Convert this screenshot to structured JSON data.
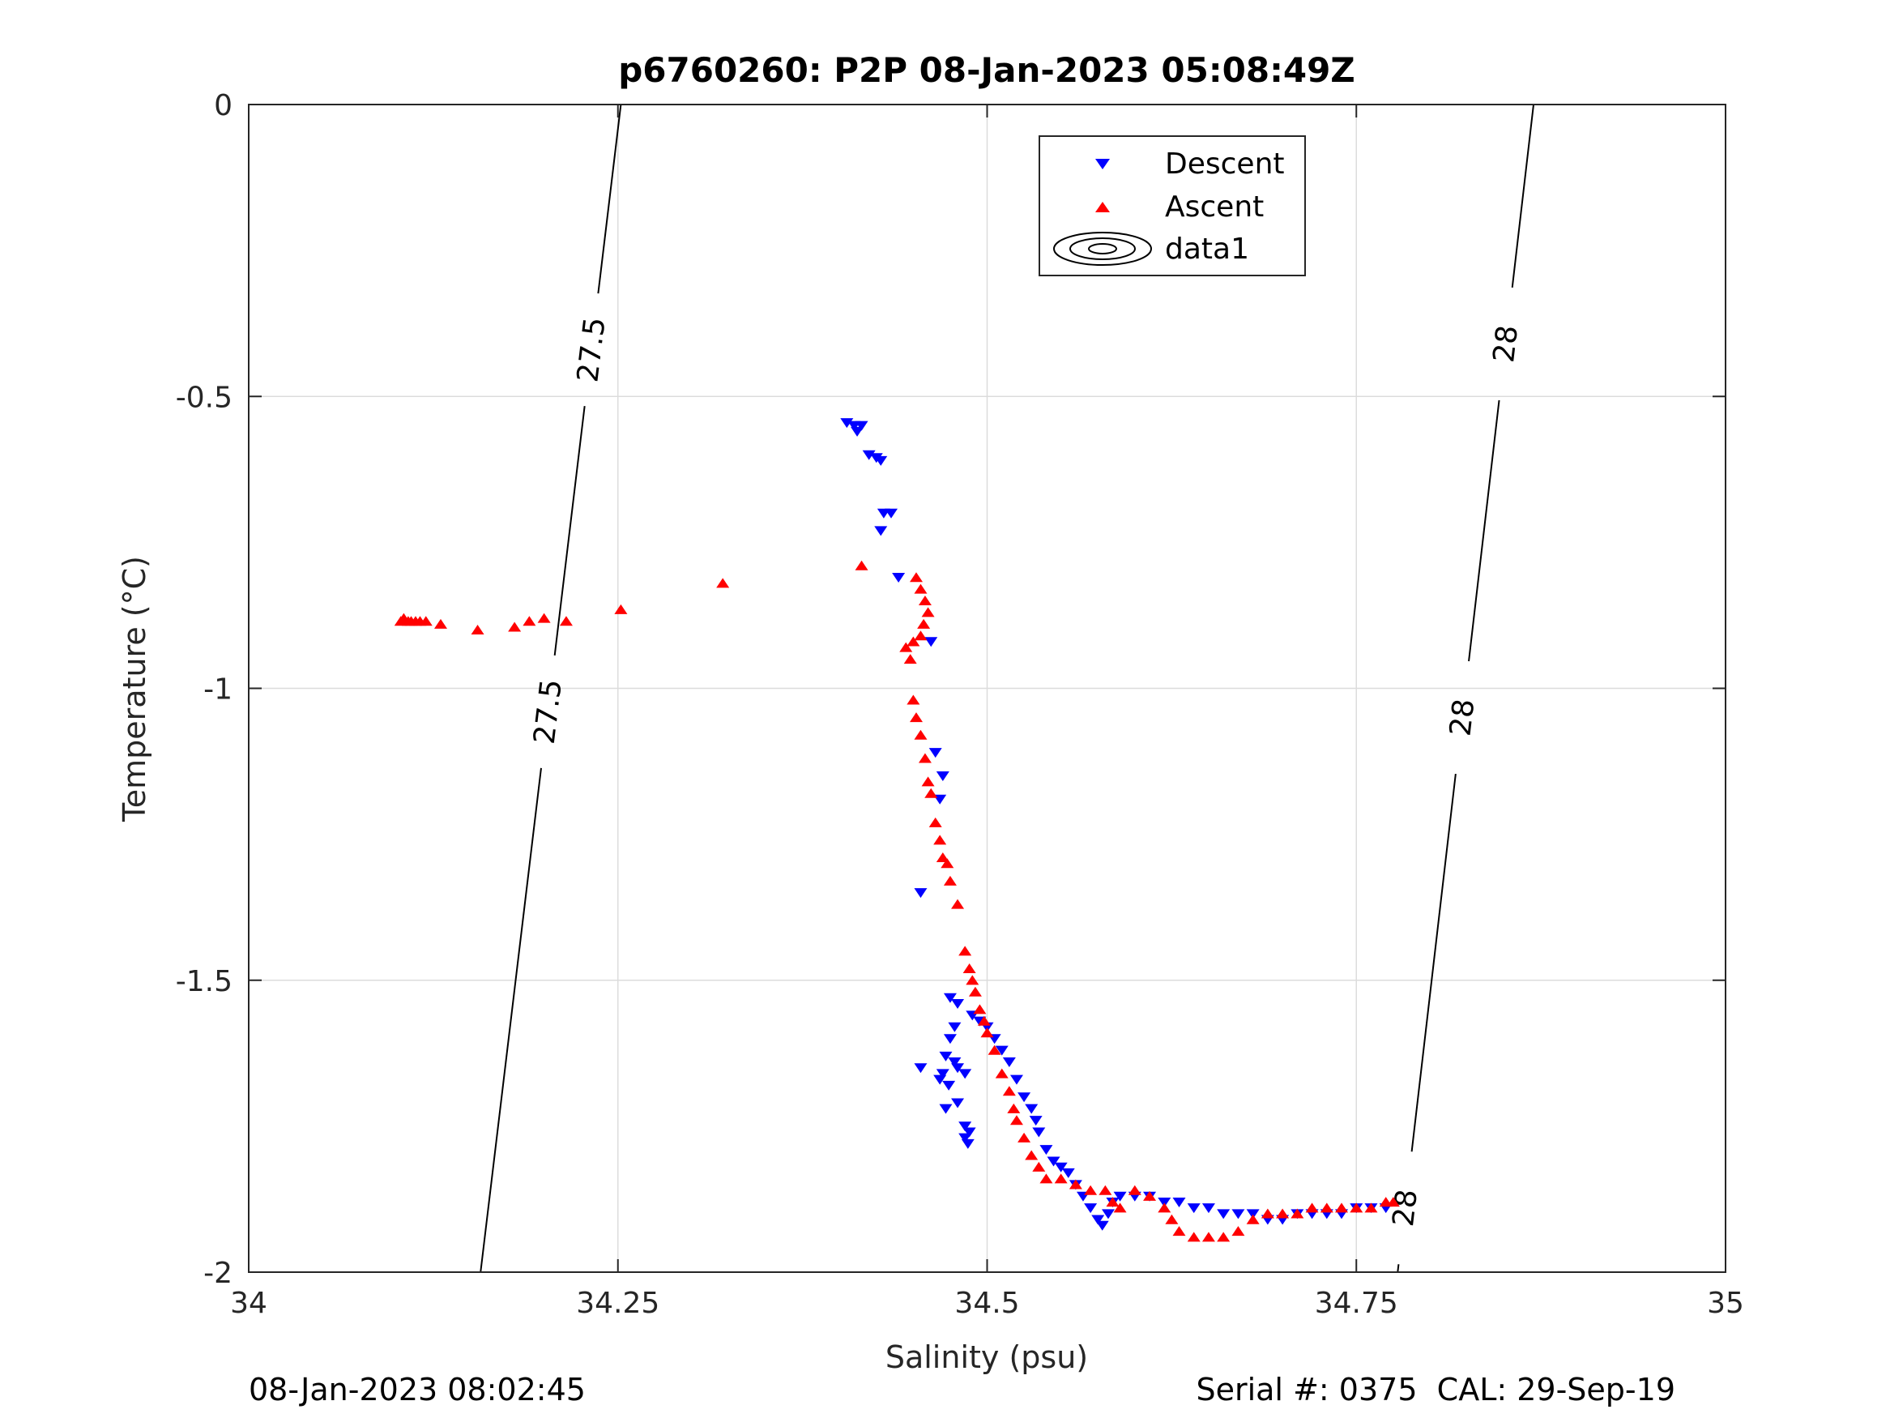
{
  "chart_data": {
    "type": "scatter",
    "title": "p6760260: P2P 08-Jan-2023 05:08:49Z",
    "xlabel": "Salinity (psu)",
    "ylabel": "Temperature (°C)",
    "xlim": [
      34,
      35
    ],
    "ylim": [
      -2,
      0
    ],
    "xticks": [
      34,
      34.25,
      34.5,
      34.75,
      35
    ],
    "xtick_labels": [
      "34",
      "34.25",
      "34.5",
      "34.75",
      "35"
    ],
    "yticks": [
      0,
      -0.5,
      -1,
      -1.5,
      -2
    ],
    "ytick_labels": [
      "0",
      "-0.5",
      "-1",
      "-1.5",
      "-2"
    ],
    "grid": true,
    "legend_position": "top-right",
    "series": [
      {
        "name": "Descent",
        "marker": "triangle-down",
        "color": "#0000ff",
        "points": [
          [
            34.405,
            -0.545
          ],
          [
            34.41,
            -0.55
          ],
          [
            34.412,
            -0.56
          ],
          [
            34.415,
            -0.55
          ],
          [
            34.42,
            -0.6
          ],
          [
            34.425,
            -0.605
          ],
          [
            34.428,
            -0.61
          ],
          [
            34.43,
            -0.7
          ],
          [
            34.435,
            -0.7
          ],
          [
            34.428,
            -0.73
          ],
          [
            34.44,
            -0.81
          ],
          [
            34.462,
            -0.92
          ],
          [
            34.465,
            -1.11
          ],
          [
            34.47,
            -1.15
          ],
          [
            34.468,
            -1.19
          ],
          [
            34.455,
            -1.35
          ],
          [
            34.475,
            -1.53
          ],
          [
            34.48,
            -1.54
          ],
          [
            34.478,
            -1.58
          ],
          [
            34.475,
            -1.6
          ],
          [
            34.472,
            -1.63
          ],
          [
            34.478,
            -1.64
          ],
          [
            34.48,
            -1.65
          ],
          [
            34.455,
            -1.65
          ],
          [
            34.47,
            -1.66
          ],
          [
            34.485,
            -1.66
          ],
          [
            34.474,
            -1.68
          ],
          [
            34.468,
            -1.67
          ],
          [
            34.472,
            -1.72
          ],
          [
            34.48,
            -1.71
          ],
          [
            34.485,
            -1.75
          ],
          [
            34.488,
            -1.76
          ],
          [
            34.485,
            -1.77
          ],
          [
            34.487,
            -1.78
          ],
          [
            34.49,
            -1.56
          ],
          [
            34.495,
            -1.57
          ],
          [
            34.5,
            -1.58
          ],
          [
            34.505,
            -1.6
          ],
          [
            34.51,
            -1.62
          ],
          [
            34.515,
            -1.64
          ],
          [
            34.52,
            -1.67
          ],
          [
            34.525,
            -1.7
          ],
          [
            34.53,
            -1.72
          ],
          [
            34.533,
            -1.74
          ],
          [
            34.535,
            -1.76
          ],
          [
            34.54,
            -1.79
          ],
          [
            34.545,
            -1.81
          ],
          [
            34.55,
            -1.82
          ],
          [
            34.555,
            -1.83
          ],
          [
            34.56,
            -1.85
          ],
          [
            34.565,
            -1.87
          ],
          [
            34.57,
            -1.89
          ],
          [
            34.575,
            -1.91
          ],
          [
            34.578,
            -1.92
          ],
          [
            34.582,
            -1.9
          ],
          [
            34.585,
            -1.88
          ],
          [
            34.59,
            -1.87
          ],
          [
            34.6,
            -1.87
          ],
          [
            34.61,
            -1.87
          ],
          [
            34.62,
            -1.88
          ],
          [
            34.63,
            -1.88
          ],
          [
            34.64,
            -1.89
          ],
          [
            34.65,
            -1.89
          ],
          [
            34.66,
            -1.9
          ],
          [
            34.67,
            -1.9
          ],
          [
            34.68,
            -1.9
          ],
          [
            34.69,
            -1.91
          ],
          [
            34.7,
            -1.91
          ],
          [
            34.71,
            -1.9
          ],
          [
            34.72,
            -1.9
          ],
          [
            34.73,
            -1.9
          ],
          [
            34.74,
            -1.9
          ],
          [
            34.75,
            -1.89
          ],
          [
            34.76,
            -1.89
          ],
          [
            34.77,
            -1.89
          ]
        ]
      },
      {
        "name": "Ascent",
        "marker": "triangle-up",
        "color": "#ff0000",
        "points": [
          [
            34.103,
            -0.885
          ],
          [
            34.105,
            -0.88
          ],
          [
            34.108,
            -0.885
          ],
          [
            34.11,
            -0.885
          ],
          [
            34.113,
            -0.885
          ],
          [
            34.116,
            -0.885
          ],
          [
            34.12,
            -0.885
          ],
          [
            34.13,
            -0.89
          ],
          [
            34.155,
            -0.9
          ],
          [
            34.18,
            -0.895
          ],
          [
            34.19,
            -0.885
          ],
          [
            34.2,
            -0.88
          ],
          [
            34.215,
            -0.885
          ],
          [
            34.252,
            -0.865
          ],
          [
            34.321,
            -0.82
          ],
          [
            34.415,
            -0.79
          ],
          [
            34.452,
            -0.81
          ],
          [
            34.455,
            -0.83
          ],
          [
            34.458,
            -0.85
          ],
          [
            34.46,
            -0.87
          ],
          [
            34.457,
            -0.89
          ],
          [
            34.455,
            -0.91
          ],
          [
            34.45,
            -0.92
          ],
          [
            34.445,
            -0.93
          ],
          [
            34.448,
            -0.95
          ],
          [
            34.45,
            -1.02
          ],
          [
            34.452,
            -1.05
          ],
          [
            34.455,
            -1.08
          ],
          [
            34.458,
            -1.12
          ],
          [
            34.46,
            -1.16
          ],
          [
            34.462,
            -1.18
          ],
          [
            34.465,
            -1.23
          ],
          [
            34.468,
            -1.26
          ],
          [
            34.47,
            -1.29
          ],
          [
            34.473,
            -1.3
          ],
          [
            34.475,
            -1.33
          ],
          [
            34.48,
            -1.37
          ],
          [
            34.485,
            -1.45
          ],
          [
            34.488,
            -1.48
          ],
          [
            34.49,
            -1.5
          ],
          [
            34.492,
            -1.52
          ],
          [
            34.495,
            -1.55
          ],
          [
            34.498,
            -1.57
          ],
          [
            34.5,
            -1.59
          ],
          [
            34.505,
            -1.62
          ],
          [
            34.51,
            -1.66
          ],
          [
            34.515,
            -1.69
          ],
          [
            34.518,
            -1.72
          ],
          [
            34.52,
            -1.74
          ],
          [
            34.525,
            -1.77
          ],
          [
            34.53,
            -1.8
          ],
          [
            34.535,
            -1.82
          ],
          [
            34.54,
            -1.84
          ],
          [
            34.55,
            -1.84
          ],
          [
            34.56,
            -1.85
          ],
          [
            34.57,
            -1.86
          ],
          [
            34.58,
            -1.86
          ],
          [
            34.585,
            -1.88
          ],
          [
            34.59,
            -1.89
          ],
          [
            34.6,
            -1.86
          ],
          [
            34.61,
            -1.87
          ],
          [
            34.62,
            -1.89
          ],
          [
            34.625,
            -1.91
          ],
          [
            34.63,
            -1.93
          ],
          [
            34.64,
            -1.94
          ],
          [
            34.65,
            -1.94
          ],
          [
            34.66,
            -1.94
          ],
          [
            34.67,
            -1.93
          ],
          [
            34.68,
            -1.91
          ],
          [
            34.69,
            -1.9
          ],
          [
            34.7,
            -1.9
          ],
          [
            34.71,
            -1.9
          ],
          [
            34.72,
            -1.89
          ],
          [
            34.73,
            -1.89
          ],
          [
            34.74,
            -1.89
          ],
          [
            34.75,
            -1.89
          ],
          [
            34.76,
            -1.89
          ],
          [
            34.77,
            -1.88
          ],
          [
            34.775,
            -1.88
          ]
        ]
      },
      {
        "name": "data1",
        "marker": "contour",
        "color": "#000000",
        "contours": [
          {
            "level": "27.5",
            "line": [
              [
                34.252,
                0
              ],
              [
                34.157,
                -2
              ]
            ],
            "labels_at_y": [
              -0.42,
              -1.04
            ]
          },
          {
            "level": "28",
            "line": [
              [
                34.87,
                0
              ],
              [
                34.778,
                -2
              ]
            ],
            "labels_at_y": [
              -0.41,
              -1.05,
              -1.89
            ]
          }
        ]
      }
    ]
  },
  "footer": {
    "date": "08-Jan-2023 08:02:45",
    "serial": "Serial #: 0375  CAL: 29-Sep-19"
  }
}
